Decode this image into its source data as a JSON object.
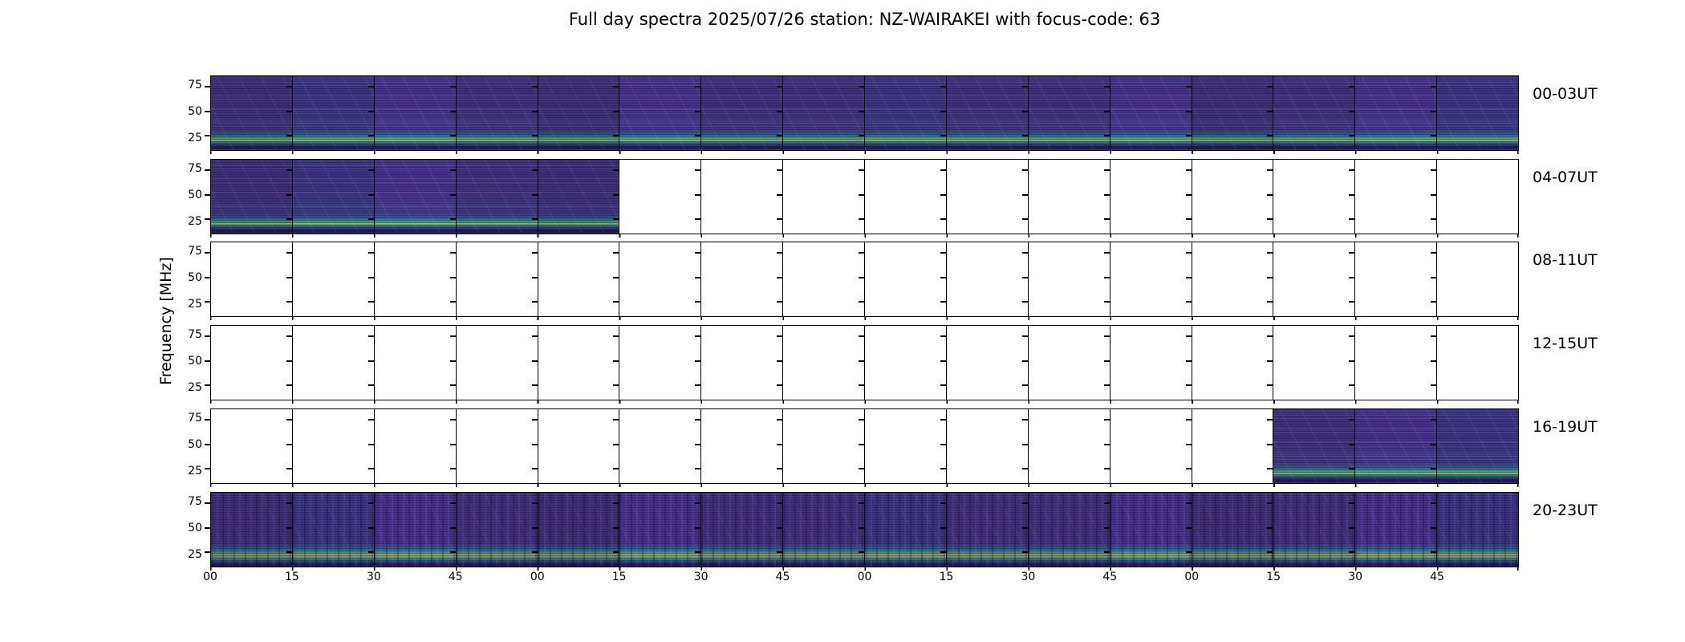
{
  "title": "Full day spectra 2025/07/26 station: NZ-WAIRAKEI with focus-code: 63",
  "colors": {
    "figure_bg": "#ffffff",
    "axis": "#000000",
    "spectrogram_base_purple": "#43307c",
    "emission_teal": "#21918c",
    "emission_green": "#35b779",
    "emission_yellow_green": "#aadb50",
    "emission_yellow": "#fde725",
    "empty_panel": "#ffffff"
  },
  "chart_data": {
    "type": "heatmap",
    "subtype": "radio-spectrogram-daily-overview",
    "title": "Full day spectra 2025/07/26 station: NZ-WAIRAKEI with focus-code: 63",
    "station": "NZ-WAIRAKEI",
    "date": "2025/07/26",
    "focus_code": "63",
    "ylabel": "Frequency [MHz]",
    "y_tick_labels": [
      "75",
      "50",
      "25"
    ],
    "yticks_mhz": [
      75,
      50,
      25
    ],
    "y_axis_direction": "75 MHz at top, 25 MHz near bottom of each row",
    "x_tick_labels": [
      "00",
      "15",
      "30",
      "45",
      "00",
      "15",
      "30",
      "45",
      "00",
      "15",
      "30",
      "45",
      "00",
      "15",
      "30",
      "45"
    ],
    "x_segment_minutes": 15,
    "segments_per_row": 16,
    "hours_per_row": 4,
    "colormap": "viridis",
    "legend_position": "none",
    "grid": "tile borders only",
    "rows": [
      {
        "label": "00-03UT",
        "segments": [
          1,
          1,
          1,
          1,
          1,
          1,
          1,
          1,
          1,
          1,
          1,
          1,
          1,
          1,
          1,
          1
        ],
        "coverage": "all 16 15-min spectrogram tiles present"
      },
      {
        "label": "04-07UT",
        "segments": [
          1,
          1,
          1,
          1,
          1,
          0,
          0,
          0,
          0,
          0,
          0,
          0,
          0,
          0,
          0,
          0
        ],
        "coverage": "first 5 tiles present (04:00-05:15), remainder empty"
      },
      {
        "label": "08-11UT",
        "segments": [
          0,
          0,
          0,
          0,
          0,
          0,
          0,
          0,
          0,
          0,
          0,
          0,
          0,
          0,
          0,
          0
        ],
        "coverage": "no data, all tiles empty"
      },
      {
        "label": "12-15UT",
        "segments": [
          0,
          0,
          0,
          0,
          0,
          0,
          0,
          0,
          0,
          0,
          0,
          0,
          0,
          0,
          0,
          0
        ],
        "coverage": "no data, all tiles empty"
      },
      {
        "label": "16-19UT",
        "segments": [
          0,
          0,
          0,
          0,
          0,
          0,
          0,
          0,
          0,
          0,
          0,
          0,
          0,
          1,
          1,
          1
        ],
        "coverage": "last 3 tiles present (19:15-20:00), earlier tiles empty"
      },
      {
        "label": "20-23UT",
        "segments": [
          1,
          1,
          1,
          1,
          1,
          1,
          1,
          1,
          1,
          1,
          1,
          1,
          1,
          1,
          1,
          1
        ],
        "coverage": "all 16 15-min spectrogram tiles present"
      }
    ],
    "notes": "Filled tiles are dark purple viridis spectrograms with a bright green/yellow emission band near 20-25 MHz at the bottom and faint diagonal interference streaks; bottom row shows extra vertical striping and yellow streaks."
  }
}
